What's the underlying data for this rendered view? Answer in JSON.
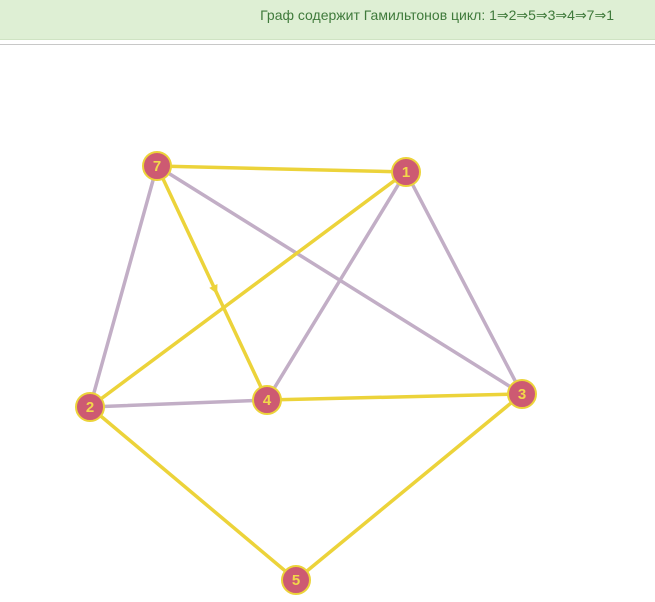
{
  "message": "Граф содержит Гамильтонов цикл: 1⇒2⇒5⇒3⇒4⇒7⇒1",
  "colors": {
    "banner_bg": "#deefd4",
    "banner_text": "#3f7a3b",
    "cycle_edge": "#ecd33a",
    "other_edge": "#c2aec6",
    "node_fill": "#cd5a72",
    "node_stroke": "#ecd33a",
    "node_label": "#f2d84a"
  },
  "graph": {
    "nodes": [
      {
        "id": "1",
        "label": "1"
      },
      {
        "id": "2",
        "label": "2"
      },
      {
        "id": "3",
        "label": "3"
      },
      {
        "id": "4",
        "label": "4"
      },
      {
        "id": "5",
        "label": "5"
      },
      {
        "id": "7",
        "label": "7"
      }
    ],
    "edges": [
      {
        "from": "7",
        "to": "1",
        "cycle": true
      },
      {
        "from": "1",
        "to": "2",
        "cycle": true
      },
      {
        "from": "2",
        "to": "5",
        "cycle": true
      },
      {
        "from": "5",
        "to": "3",
        "cycle": true
      },
      {
        "from": "3",
        "to": "4",
        "cycle": true
      },
      {
        "from": "4",
        "to": "7",
        "cycle": true
      },
      {
        "from": "7",
        "to": "2",
        "cycle": false
      },
      {
        "from": "7",
        "to": "3",
        "cycle": false
      },
      {
        "from": "1",
        "to": "4",
        "cycle": false
      },
      {
        "from": "1",
        "to": "3",
        "cycle": false
      },
      {
        "from": "2",
        "to": "4",
        "cycle": false
      }
    ],
    "cycle": [
      "1",
      "2",
      "5",
      "3",
      "4",
      "7",
      "1"
    ]
  }
}
